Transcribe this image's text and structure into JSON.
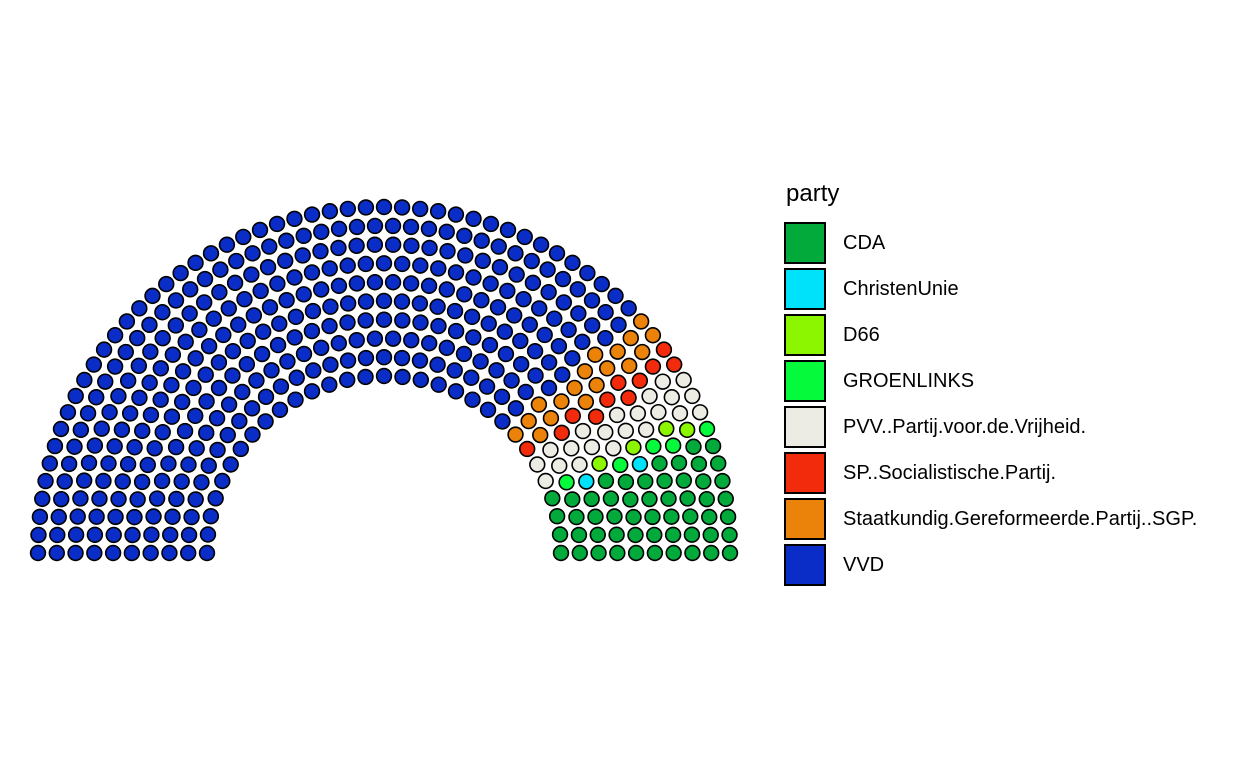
{
  "chart_data": {
    "type": "parliament",
    "legend_title": "party",
    "legend_position": "right",
    "grid": false,
    "total_seats": 462,
    "parties": [
      {
        "name": "VVD",
        "seats": 347,
        "color": "#0A2DC8"
      },
      {
        "name": "Staatkundig.Gereformeerde.Partij..SGP.",
        "seats": 18,
        "color": "#EB8209"
      },
      {
        "name": "SP..Socialistische.Partij.",
        "seats": 11,
        "color": "#F22B0C"
      },
      {
        "name": "PVV..Partij.voor.de.Vrijheid.",
        "seats": 22,
        "color": "#ECECE4"
      },
      {
        "name": "D66",
        "seats": 4,
        "color": "#8CF500"
      },
      {
        "name": "GROENLINKS",
        "seats": 5,
        "color": "#05FA3C"
      },
      {
        "name": "ChristenUnie",
        "seats": 2,
        "color": "#00E1FA"
      },
      {
        "name": "CDA",
        "seats": 53,
        "color": "#02AA3C"
      }
    ],
    "legend_order": [
      "CDA",
      "ChristenUnie",
      "D66",
      "GROENLINKS",
      "PVV..Partij.voor.de.Vrijheid.",
      "SP..Socialistische.Partij.",
      "Staatkundig.Gereformeerde.Partij..SGP.",
      "VVD"
    ]
  }
}
